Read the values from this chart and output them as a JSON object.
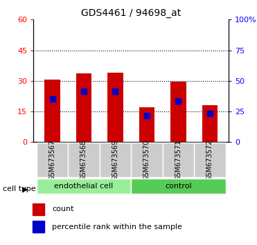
{
  "title": "GDS4461 / 94698_at",
  "samples": [
    "GSM673567",
    "GSM673568",
    "GSM673569",
    "GSM673570",
    "GSM673571",
    "GSM673572"
  ],
  "counts": [
    30.5,
    33.5,
    34.0,
    17.0,
    29.5,
    18.0
  ],
  "percentile_values": [
    21.0,
    25.0,
    25.0,
    13.0,
    20.0,
    14.0
  ],
  "bar_color": "#cc0000",
  "percentile_color": "#0000cc",
  "ylim_left": [
    0,
    60
  ],
  "ylim_right": [
    0,
    100
  ],
  "yticks_left": [
    0,
    15,
    30,
    45,
    60
  ],
  "yticks_right": [
    0,
    25,
    50,
    75,
    100
  ],
  "ytick_labels_right": [
    "0",
    "25",
    "50",
    "75",
    "100%"
  ],
  "groups": [
    {
      "label": "endothelial cell",
      "indices": [
        0,
        1,
        2
      ],
      "color": "#99ee99"
    },
    {
      "label": "control",
      "indices": [
        3,
        4,
        5
      ],
      "color": "#55cc55"
    }
  ],
  "cell_type_label": "cell type",
  "legend_count_label": "count",
  "legend_pct_label": "percentile rank within the sample",
  "bar_width": 0.5
}
